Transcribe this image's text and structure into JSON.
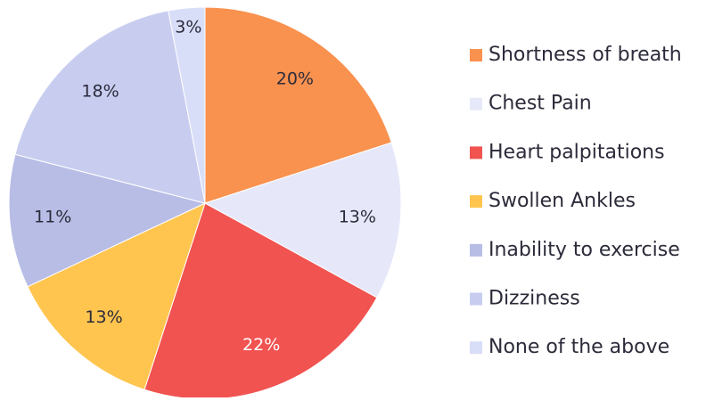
{
  "chart_data": {
    "type": "pie",
    "categories": [
      "Shortness of breath",
      "Chest Pain",
      "Heart palpitations",
      "Swollen Ankles",
      "Inability to exercise",
      "Dizziness",
      "None of the above"
    ],
    "values": [
      20,
      13,
      22,
      13,
      11,
      18,
      3
    ],
    "value_labels": [
      "20%",
      "13%",
      "22%",
      "13%",
      "11%",
      "18%",
      "3%"
    ],
    "colors": [
      "#F9914F",
      "#E6E8FA",
      "#F15350",
      "#FFC54F",
      "#B8BDE6",
      "#C8CDF0",
      "#D9DEF8"
    ],
    "legend": "right"
  }
}
